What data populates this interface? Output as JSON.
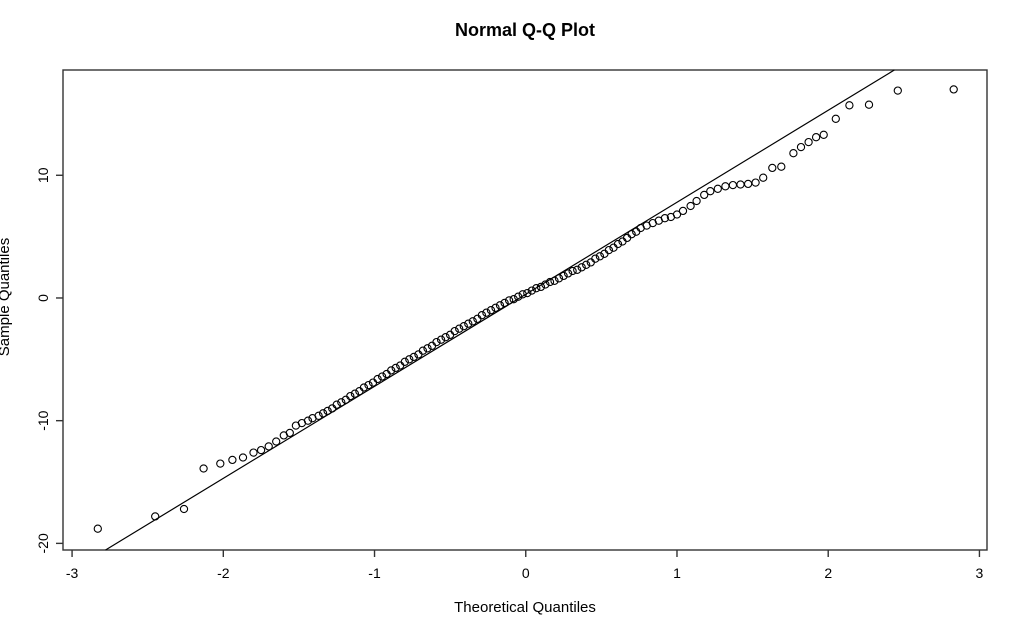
{
  "chart_data": {
    "type": "scatter",
    "title": "Normal Q-Q Plot",
    "xlabel": "Theoretical Quantiles",
    "ylabel": "Sample Quantiles",
    "xlim": [
      -3.06,
      3.05
    ],
    "ylim": [
      -20.54,
      18.58
    ],
    "x_ticks": [
      -3,
      -2,
      -1,
      0,
      1,
      2,
      3
    ],
    "y_ticks": [
      -20,
      -10,
      0,
      10
    ],
    "grid": false,
    "legend": null,
    "marker": "open-circle",
    "colors": {
      "points": "#000000",
      "reference_line": "#000000",
      "axis": "#333333",
      "background": "#ffffff"
    },
    "reference_line": {
      "slope": 7.5,
      "intercept": 0.3
    },
    "points": [
      [
        -2.83,
        -18.8
      ],
      [
        -2.45,
        -17.8
      ],
      [
        -2.26,
        -17.2
      ],
      [
        -2.13,
        -13.9
      ],
      [
        -2.02,
        -13.5
      ],
      [
        -1.94,
        -13.2
      ],
      [
        -1.87,
        -13.0
      ],
      [
        -1.8,
        -12.6
      ],
      [
        -1.75,
        -12.4
      ],
      [
        -1.7,
        -12.1
      ],
      [
        -1.65,
        -11.7
      ],
      [
        -1.6,
        -11.2
      ],
      [
        -1.56,
        -11.0
      ],
      [
        -1.52,
        -10.4
      ],
      [
        -1.48,
        -10.2
      ],
      [
        -1.44,
        -10.0
      ],
      [
        -1.41,
        -9.8
      ],
      [
        -1.37,
        -9.6
      ],
      [
        -1.34,
        -9.4
      ],
      [
        -1.31,
        -9.2
      ],
      [
        -1.28,
        -9.0
      ],
      [
        -1.25,
        -8.7
      ],
      [
        -1.22,
        -8.5
      ],
      [
        -1.19,
        -8.3
      ],
      [
        -1.16,
        -8.0
      ],
      [
        -1.13,
        -7.8
      ],
      [
        -1.1,
        -7.6
      ],
      [
        -1.07,
        -7.3
      ],
      [
        -1.04,
        -7.1
      ],
      [
        -1.01,
        -6.9
      ],
      [
        -0.98,
        -6.6
      ],
      [
        -0.95,
        -6.4
      ],
      [
        -0.92,
        -6.2
      ],
      [
        -0.89,
        -5.9
      ],
      [
        -0.86,
        -5.7
      ],
      [
        -0.83,
        -5.5
      ],
      [
        -0.8,
        -5.2
      ],
      [
        -0.77,
        -5.0
      ],
      [
        -0.74,
        -4.8
      ],
      [
        -0.71,
        -4.6
      ],
      [
        -0.68,
        -4.3
      ],
      [
        -0.65,
        -4.1
      ],
      [
        -0.62,
        -3.9
      ],
      [
        -0.59,
        -3.6
      ],
      [
        -0.56,
        -3.4
      ],
      [
        -0.53,
        -3.2
      ],
      [
        -0.5,
        -3.0
      ],
      [
        -0.47,
        -2.7
      ],
      [
        -0.44,
        -2.5
      ],
      [
        -0.41,
        -2.3
      ],
      [
        -0.38,
        -2.1
      ],
      [
        -0.35,
        -1.9
      ],
      [
        -0.32,
        -1.7
      ],
      [
        -0.29,
        -1.4
      ],
      [
        -0.26,
        -1.2
      ],
      [
        -0.23,
        -1.0
      ],
      [
        -0.2,
        -0.8
      ],
      [
        -0.17,
        -0.6
      ],
      [
        -0.14,
        -0.4
      ],
      [
        -0.11,
        -0.2
      ],
      [
        -0.08,
        -0.1
      ],
      [
        -0.05,
        0.1
      ],
      [
        -0.02,
        0.3
      ],
      [
        0.01,
        0.4
      ],
      [
        0.04,
        0.6
      ],
      [
        0.07,
        0.8
      ],
      [
        0.1,
        0.9
      ],
      [
        0.13,
        1.1
      ],
      [
        0.16,
        1.3
      ],
      [
        0.19,
        1.4
      ],
      [
        0.22,
        1.6
      ],
      [
        0.25,
        1.8
      ],
      [
        0.28,
        2.0
      ],
      [
        0.31,
        2.2
      ],
      [
        0.34,
        2.3
      ],
      [
        0.37,
        2.5
      ],
      [
        0.4,
        2.7
      ],
      [
        0.43,
        2.9
      ],
      [
        0.46,
        3.2
      ],
      [
        0.49,
        3.4
      ],
      [
        0.52,
        3.6
      ],
      [
        0.55,
        3.9
      ],
      [
        0.58,
        4.1
      ],
      [
        0.61,
        4.4
      ],
      [
        0.64,
        4.6
      ],
      [
        0.67,
        4.9
      ],
      [
        0.7,
        5.2
      ],
      [
        0.73,
        5.4
      ],
      [
        0.76,
        5.7
      ],
      [
        0.8,
        5.9
      ],
      [
        0.84,
        6.1
      ],
      [
        0.88,
        6.3
      ],
      [
        0.92,
        6.5
      ],
      [
        0.96,
        6.6
      ],
      [
        1.0,
        6.8
      ],
      [
        1.04,
        7.1
      ],
      [
        1.09,
        7.5
      ],
      [
        1.13,
        7.9
      ],
      [
        1.18,
        8.4
      ],
      [
        1.22,
        8.7
      ],
      [
        1.27,
        8.9
      ],
      [
        1.32,
        9.1
      ],
      [
        1.37,
        9.2
      ],
      [
        1.42,
        9.25
      ],
      [
        1.47,
        9.3
      ],
      [
        1.52,
        9.4
      ],
      [
        1.57,
        9.8
      ],
      [
        1.63,
        10.6
      ],
      [
        1.69,
        10.7
      ],
      [
        1.77,
        11.8
      ],
      [
        1.82,
        12.3
      ],
      [
        1.87,
        12.7
      ],
      [
        1.92,
        13.1
      ],
      [
        1.97,
        13.3
      ],
      [
        2.05,
        14.6
      ],
      [
        2.14,
        15.7
      ],
      [
        2.27,
        15.75
      ],
      [
        2.46,
        16.9
      ],
      [
        2.83,
        17.0
      ]
    ]
  }
}
